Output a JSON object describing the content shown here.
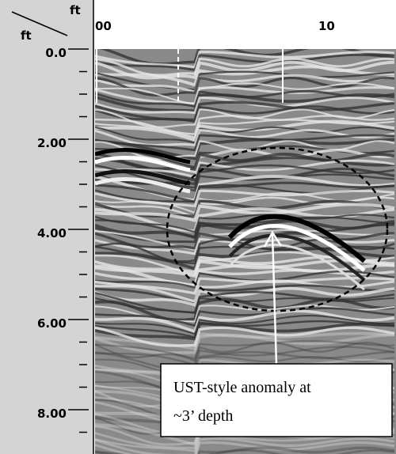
{
  "axis_corner": {
    "top_unit": "ft",
    "left_unit": "ft"
  },
  "top_axis": {
    "labels": [
      "00",
      "10"
    ]
  },
  "left_axis": {
    "labels": [
      "0.0",
      "2.00",
      "4.00",
      "6.00",
      "8.00"
    ]
  },
  "annotation": {
    "lines": [
      "UST-style anomaly at",
      "~3’ depth"
    ]
  }
}
